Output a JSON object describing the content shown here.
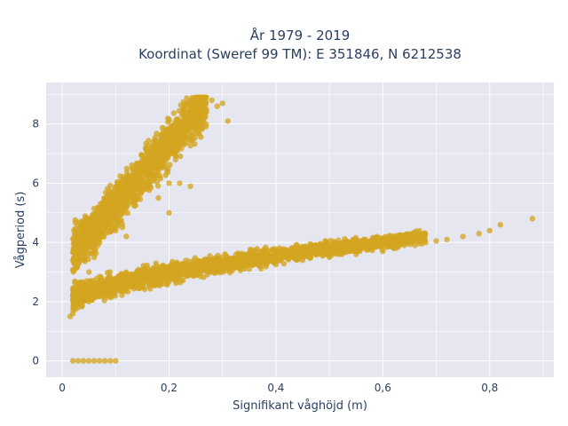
{
  "chart_data": {
    "type": "scatter",
    "title": "År 1979 - 2019",
    "subtitle": "Koordinat (Sweref 99 TM): E 351846, N 6212538",
    "xlabel": "Signifikant våghöjd (m)",
    "ylabel": "Vågperiod (s)",
    "xlim": [
      -0.03,
      0.92
    ],
    "ylim": [
      -0.55,
      9.4
    ],
    "x_ticks": [
      0,
      0.2,
      0.4,
      0.6,
      0.8
    ],
    "x_tick_labels": [
      "0",
      "0,2",
      "0,4",
      "0,6",
      "0,8"
    ],
    "y_ticks": [
      0,
      2,
      4,
      6,
      8
    ],
    "y_tick_labels": [
      "0",
      "2",
      "4",
      "6",
      "8"
    ],
    "grid": true,
    "legend": "none",
    "colors": {
      "marker": "#d4a520",
      "plot_bg": "#e5e6f0",
      "grid": "#ffffff",
      "text": "#2a3f5f"
    },
    "series": [
      {
        "values_note_free": true,
        "x": [
          0.02,
          0.03,
          0.04,
          0.05,
          0.06,
          0.07,
          0.08,
          0.09,
          0.1,
          0.015,
          0.02,
          0.03,
          0.05,
          0.08,
          0.1,
          0.12,
          0.15,
          0.2,
          0.25,
          0.3,
          0.35,
          0.4,
          0.45,
          0.5,
          0.55,
          0.6,
          0.62,
          0.64,
          0.66,
          0.68,
          0.7,
          0.72,
          0.75,
          0.78,
          0.8,
          0.82,
          0.88,
          0.05,
          0.06,
          0.07,
          0.08,
          0.09,
          0.1,
          0.11,
          0.12,
          0.13,
          0.14,
          0.15,
          0.16,
          0.17,
          0.18,
          0.19,
          0.2,
          0.21,
          0.22,
          0.23,
          0.24,
          0.25,
          0.26,
          0.27,
          0.28,
          0.29,
          0.3,
          0.31,
          0.2,
          0.22,
          0.24,
          0.15,
          0.18,
          0.2,
          0.1,
          0.12
        ],
        "y": [
          0,
          0,
          0,
          0,
          0,
          0,
          0,
          0,
          0,
          1.5,
          1.6,
          1.8,
          2.0,
          2.2,
          2.4,
          2.5,
          2.6,
          2.8,
          2.9,
          3.0,
          3.1,
          3.25,
          3.4,
          3.5,
          3.6,
          3.7,
          3.8,
          3.9,
          3.9,
          4.0,
          4.05,
          4.1,
          4.2,
          4.3,
          4.4,
          4.6,
          4.8,
          3.0,
          3.5,
          4.0,
          4.5,
          5.0,
          5.3,
          5.6,
          5.9,
          6.1,
          6.3,
          6.5,
          6.7,
          6.9,
          7.1,
          7.3,
          7.5,
          7.6,
          7.8,
          8.0,
          8.2,
          8.3,
          8.4,
          8.5,
          8.8,
          8.6,
          8.7,
          8.1,
          6.0,
          6.0,
          5.9,
          5.8,
          5.5,
          5.0,
          4.4,
          4.2
        ]
      }
    ]
  }
}
